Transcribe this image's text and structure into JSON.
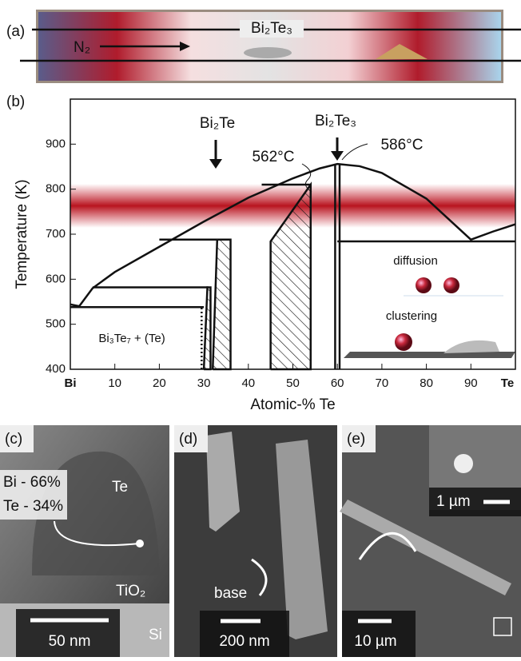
{
  "panel_a": {
    "label": "(a)",
    "compound": "Bi₂Te₃",
    "gas": "N₂"
  },
  "chart_data": {
    "type": "line",
    "panel_label": "(b)",
    "xlabel": "Atomic-% Te",
    "ylabel": "Temperature (K)",
    "xlim": [
      0,
      100
    ],
    "ylim": [
      400,
      1000
    ],
    "xticks": [
      {
        "value": 0,
        "label": "Bi"
      },
      10,
      20,
      30,
      40,
      50,
      60,
      70,
      80,
      90,
      {
        "value": 100,
        "label": "Te"
      }
    ],
    "yticks": [
      400,
      500,
      600,
      700,
      800,
      900
    ],
    "annotations": [
      "Bi₂Te",
      "Bi₂Te₃",
      "562°C",
      "586°C",
      "Bi₃Te₇ + (Te)",
      "diffusion",
      "clustering"
    ],
    "series": [
      {
        "color": "#111111",
        "x": [
          0,
          2,
          5,
          10,
          20,
          30,
          40,
          50,
          56,
          60,
          65,
          70,
          80,
          90,
          95,
          100
        ],
        "values": [
          544,
          540,
          580,
          616,
          672,
          728,
          781,
          824,
          846,
          856,
          851,
          836,
          779,
          688,
          706,
          722
        ]
      },
      {
        "color": "#111111",
        "x": [
          0,
          30
        ],
        "values": [
          538,
          538
        ]
      },
      {
        "color": "#111111",
        "x": [
          5,
          31
        ],
        "values": [
          582,
          582
        ]
      },
      {
        "color": "#111111",
        "x": [
          20,
          36
        ],
        "values": [
          688,
          688
        ]
      },
      {
        "color": "#111111",
        "x": [
          43,
          54
        ],
        "values": [
          810,
          810
        ]
      },
      {
        "color": "#111111",
        "x": [
          60,
          100
        ],
        "values": [
          684,
          684
        ]
      },
      {
        "color": "#111111",
        "x": [
          59.5,
          59.5
        ],
        "values": [
          400,
          856
        ]
      },
      {
        "color": "#111111",
        "x": [
          60.5,
          60.5
        ],
        "values": [
          400,
          856
        ]
      },
      {
        "color": "#111111",
        "style": "dotted",
        "x": [
          29.5,
          29.5
        ],
        "values": [
          400,
          538
        ]
      },
      {
        "color": "#111111",
        "fill": "hatch",
        "x": [
          30,
          30.8,
          31.5,
          31.5,
          30
        ],
        "values": [
          400,
          582,
          582,
          400,
          400
        ]
      },
      {
        "color": "#111111",
        "fill": "hatch",
        "x": [
          32,
          33,
          36,
          36,
          32
        ],
        "values": [
          400,
          688,
          688,
          400,
          400
        ]
      },
      {
        "color": "#111111",
        "fill": "hatch",
        "x": [
          45,
          45,
          54,
          54,
          45
        ],
        "values": [
          400,
          684,
          810,
          400,
          400
        ]
      }
    ]
  },
  "panel_c": {
    "label": "(c)",
    "composition": [
      "Bi - 66%",
      "Te - 34%"
    ],
    "regions": [
      "Te",
      "TiO₂",
      "Si"
    ],
    "scale": "50 nm"
  },
  "panel_d": {
    "label": "(d)",
    "callout": "base",
    "scale": "200 nm"
  },
  "panel_e": {
    "label": "(e)",
    "inset_scale": "1 µm",
    "scale": "10 µm"
  }
}
